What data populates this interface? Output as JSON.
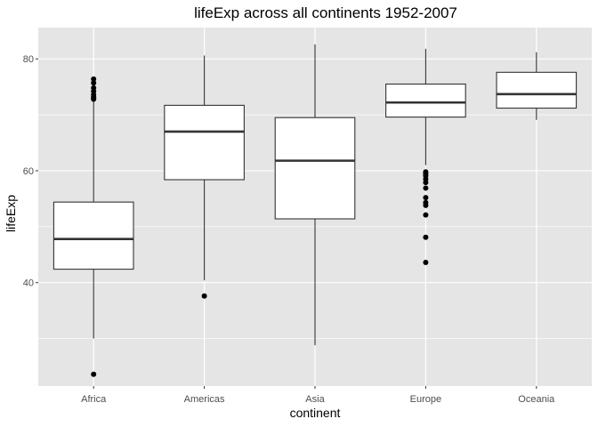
{
  "chart_data": {
    "type": "boxplot",
    "title": "lifeExp across all continents 1952-2007",
    "xlabel": "continent",
    "ylabel": "lifeExp",
    "ylim": [
      21.5,
      85.6
    ],
    "yticks": [
      40,
      60,
      80
    ],
    "y_tick_labels": [
      "40",
      "60",
      "80"
    ],
    "grid": true,
    "categories": [
      "Africa",
      "Americas",
      "Asia",
      "Europe",
      "Oceania"
    ],
    "boxes": [
      {
        "category": "Africa",
        "whisker_low": 30.0,
        "q1": 42.4,
        "median": 47.8,
        "q3": 54.4,
        "whisker_high": 72.5,
        "outliers": [
          23.6,
          72.8,
          73.0,
          73.2,
          73.6,
          74.2,
          74.8,
          75.7,
          76.4
        ]
      },
      {
        "category": "Americas",
        "whisker_low": 40.4,
        "q1": 58.4,
        "median": 67.0,
        "q3": 71.7,
        "whisker_high": 80.6,
        "outliers": [
          37.6
        ]
      },
      {
        "category": "Asia",
        "whisker_low": 28.8,
        "q1": 51.4,
        "median": 61.8,
        "q3": 69.5,
        "whisker_high": 82.6,
        "outliers": []
      },
      {
        "category": "Europe",
        "whisker_low": 61.0,
        "q1": 69.6,
        "median": 72.2,
        "q3": 75.5,
        "whisker_high": 81.8,
        "outliers": [
          43.6,
          48.1,
          52.1,
          53.8,
          54.3,
          55.2,
          56.9,
          57.9,
          58.5,
          59.1,
          59.5,
          59.8
        ]
      },
      {
        "category": "Oceania",
        "whisker_low": 69.1,
        "q1": 71.2,
        "median": 73.7,
        "q3": 77.6,
        "whisker_high": 81.2,
        "outliers": []
      }
    ],
    "colors": {
      "panel_background": "#e5e5e5",
      "gridline": "#ffffff",
      "box_fill": "#ffffff",
      "box_stroke": "#333333",
      "point": "#000000"
    }
  }
}
